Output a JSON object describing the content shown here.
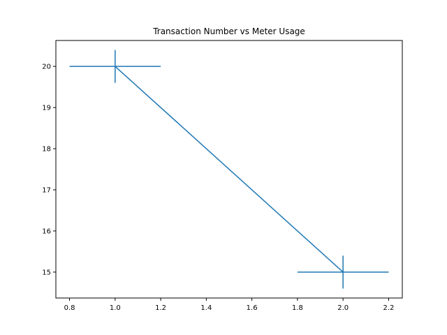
{
  "chart_data": {
    "type": "line",
    "title": "Transaction Number vs Meter Usage",
    "xlabel": "",
    "ylabel": "",
    "xlim": [
      0.74,
      2.26
    ],
    "ylim": [
      14.37,
      20.63
    ],
    "x_ticks": [
      0.8,
      1.0,
      1.2,
      1.4,
      1.6,
      1.8,
      2.0,
      2.2
    ],
    "x_tick_labels": [
      "0.8",
      "1.0",
      "1.2",
      "1.4",
      "1.6",
      "1.8",
      "2.0",
      "2.2"
    ],
    "y_ticks": [
      15,
      16,
      17,
      18,
      19,
      20
    ],
    "y_tick_labels": [
      "15",
      "16",
      "17",
      "18",
      "19",
      "20"
    ],
    "grid": false,
    "series": [
      {
        "color": "#1f77b4",
        "x": [
          1,
          2
        ],
        "y": [
          20,
          15
        ],
        "xerr": [
          0.2,
          0.2
        ],
        "yerr": [
          0.4,
          0.4
        ]
      }
    ]
  }
}
